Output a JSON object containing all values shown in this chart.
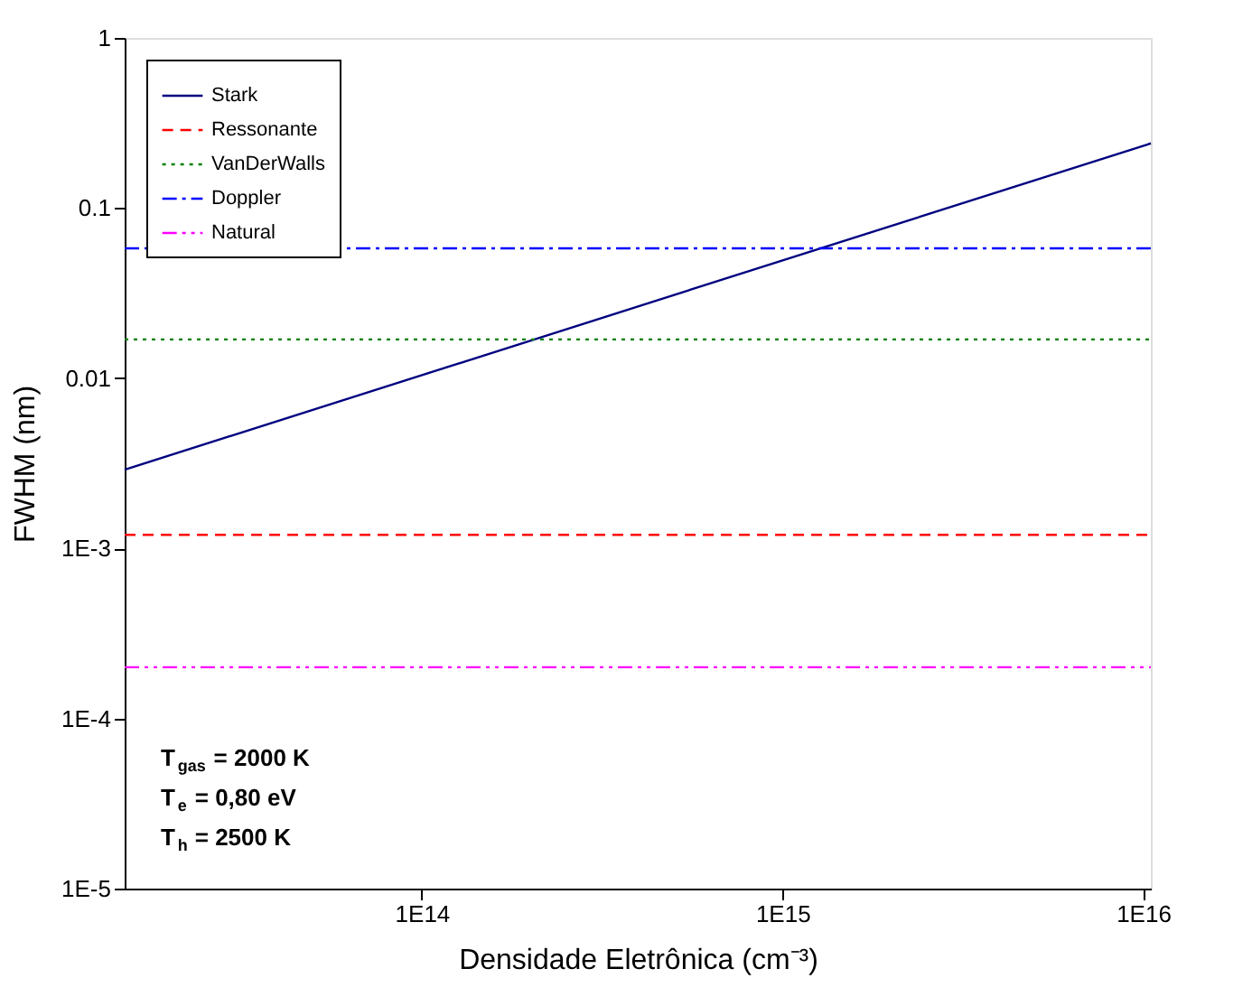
{
  "chart_data": {
    "type": "line",
    "xlabel": "Densidade Eletrônica (cm⁻³)",
    "ylabel": "FWHM (nm)",
    "log": "xy",
    "xlim": [
      15000000000000.0,
      1.05e+16
    ],
    "xticks": [
      {
        "value": 100000000000000.0,
        "label": "1E14"
      },
      {
        "value": 1000000000000000.0,
        "label": "1E15"
      },
      {
        "value": 1e+16,
        "label": "1E16"
      }
    ],
    "ylim": [
      1e-05,
      1
    ],
    "yticks": [
      {
        "value": 1e-05,
        "label": "1E-5"
      },
      {
        "value": 0.0001,
        "label": "1E-4"
      },
      {
        "value": 0.001,
        "label": "1E-3"
      },
      0.01,
      0.1,
      1
    ],
    "legend": "top left",
    "grid": false,
    "x": [
      15000000000000.0,
      1.05e+16
    ],
    "series": [
      {
        "name": "Stark",
        "color": "#000080",
        "line_style": "solid",
        "values": [
          0.0029,
          0.24
        ]
      },
      {
        "name": "Ressonante",
        "color": "#ff0000",
        "line_style": "dashed",
        "values": [
          0.0012,
          0.0012
        ]
      },
      {
        "name": "VanDerWalls",
        "color": "#008000",
        "line_style": "dotted",
        "values": [
          0.0169,
          0.0169
        ]
      },
      {
        "name": "Doppler",
        "color": "#0000ff",
        "line_style": "dashdot",
        "values": [
          0.058,
          0.058
        ]
      },
      {
        "name": "Natural",
        "color": "#ff00ff",
        "line_style": "dashdotdot",
        "values": [
          0.0002,
          0.0002
        ]
      }
    ],
    "annotations": [
      "T$_{gas}$ = 2000 K",
      "T$_{e}$ = 0,80 eV",
      "T$_{h}$ = 2500 K"
    ]
  }
}
